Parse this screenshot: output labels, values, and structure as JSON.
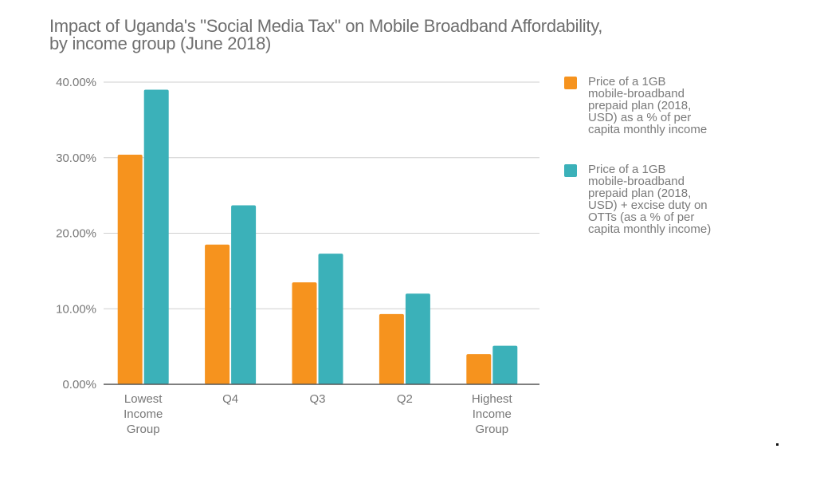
{
  "chart_data": {
    "type": "bar",
    "title": "Impact of Uganda's \"Social Media Tax\" on Mobile Broadband Affordability,",
    "subtitle": "by income group (June 2018)",
    "categories": [
      "Lowest Income Group",
      "Q4",
      "Q3",
      "Q2",
      "Highest Income Group"
    ],
    "category_lines": [
      [
        "Lowest",
        "Income",
        "Group"
      ],
      [
        "Q4"
      ],
      [
        "Q3"
      ],
      [
        "Q2"
      ],
      [
        "Highest",
        "Income",
        "Group"
      ]
    ],
    "series": [
      {
        "name": "Price of a 1GB mobile-broadband prepaid plan (2018, USD) as a % of per capita monthly income",
        "name_lines": [
          "Price of a 1GB",
          "mobile-broadband",
          "prepaid plan (2018,",
          "USD) as a % of per",
          "capita monthly income"
        ],
        "color": "#f6931e",
        "values": [
          30.4,
          18.5,
          13.5,
          9.3,
          4.0
        ]
      },
      {
        "name": "Price of a 1GB mobile-broadband prepaid plan (2018, USD) + excise duty on OTTs (as a % of per capita monthly income)",
        "name_lines": [
          "Price of a 1GB",
          "mobile-broadband",
          "prepaid plan (2018,",
          "USD) + excise duty on",
          "OTTs (as a % of per",
          "capita monthly income)"
        ],
        "color": "#3bb1b9",
        "values": [
          39.0,
          23.7,
          17.3,
          12.0,
          5.1
        ]
      }
    ],
    "xlabel": "",
    "ylabel": "",
    "ylim": [
      0,
      40
    ],
    "yticks": [
      0,
      10,
      20,
      30,
      40
    ],
    "ytick_labels": [
      "0.00%",
      "10.00%",
      "20.00%",
      "30.00%",
      "40.00%"
    ],
    "grid": true,
    "legend_position": "right"
  },
  "footer_mark": "."
}
